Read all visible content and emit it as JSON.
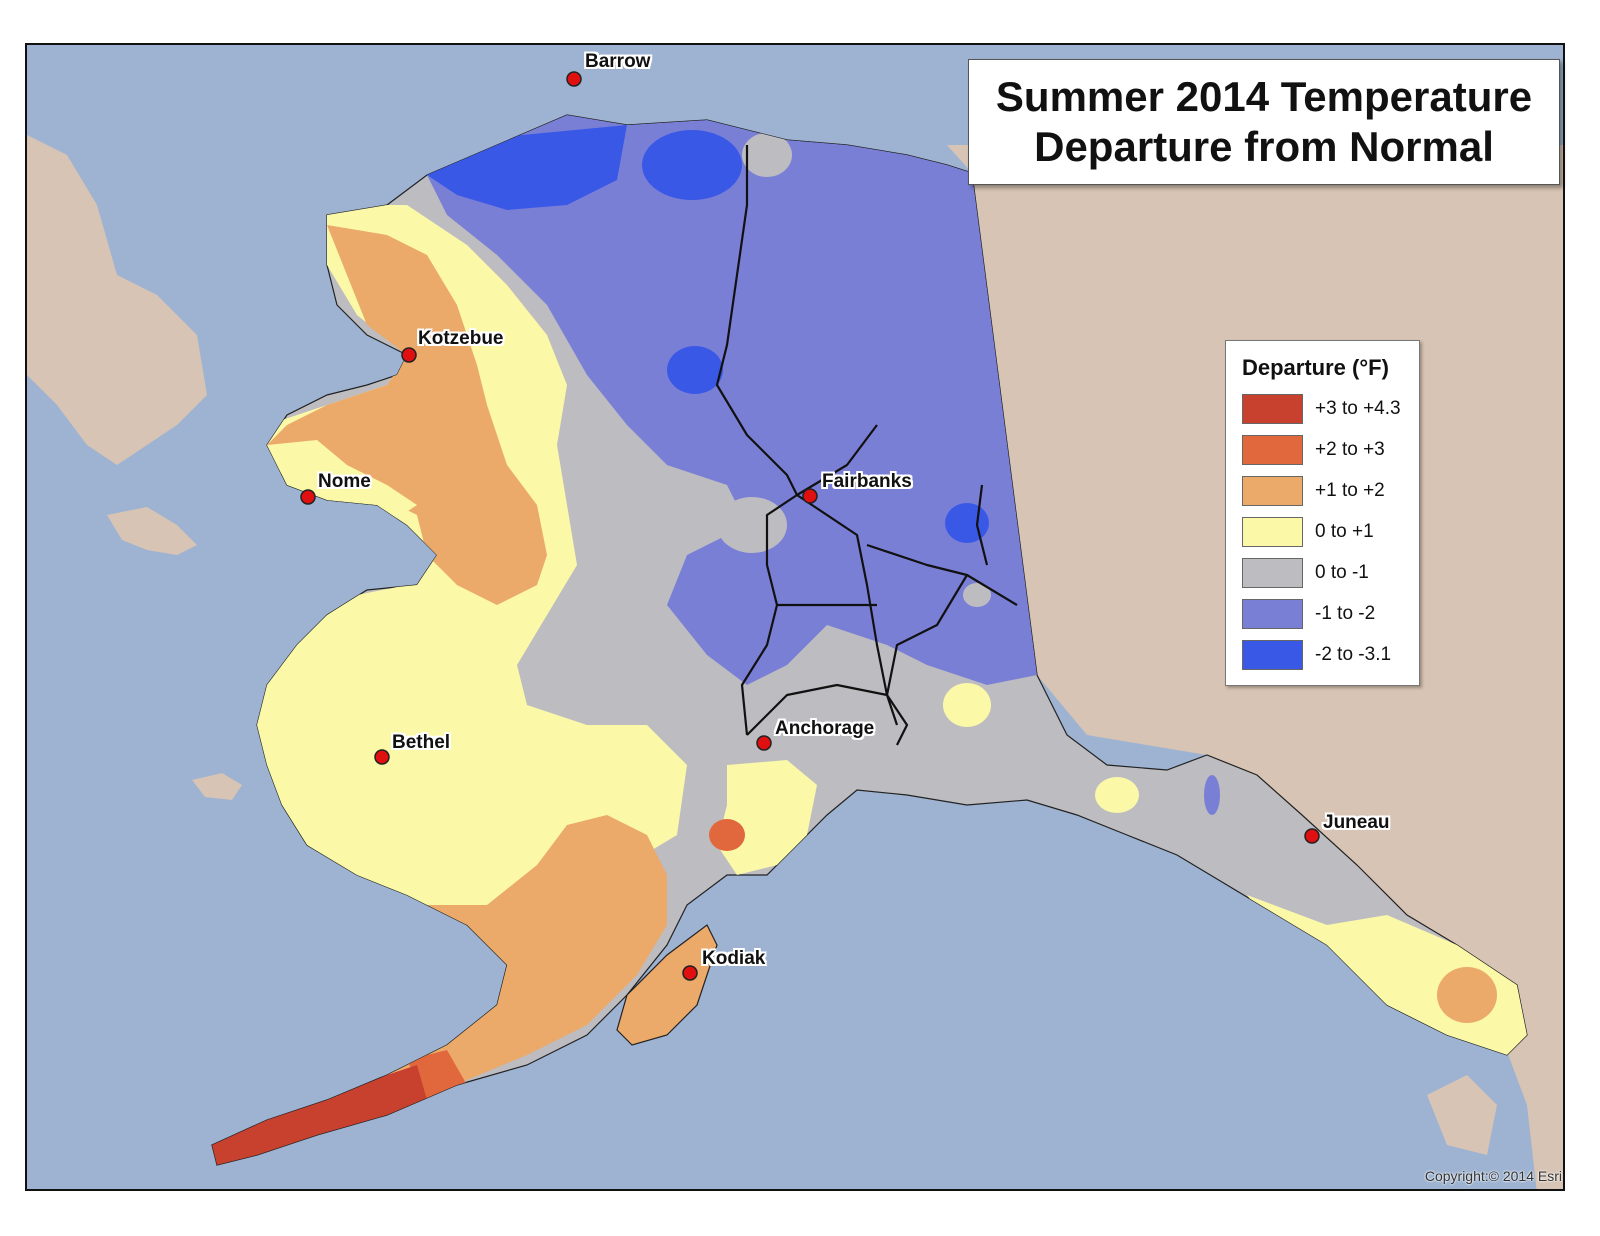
{
  "title": {
    "line1": "Summer 2014 Temperature",
    "line2": "Departure from Normal"
  },
  "legend": {
    "title": "Departure (°F)",
    "items": [
      {
        "label": "+3 to +4.3",
        "color": "#c8402e"
      },
      {
        "label": "+2 to +3",
        "color": "#e0683c"
      },
      {
        "label": "+1 to +2",
        "color": "#eba96a"
      },
      {
        "label": "0 to +1",
        "color": "#fbf8a8"
      },
      {
        "label": "0 to -1",
        "color": "#bdbdc1"
      },
      {
        "label": "-1 to -2",
        "color": "#7a7fd6"
      },
      {
        "label": "-2 to -3.1",
        "color": "#3a58e6"
      }
    ]
  },
  "cities": [
    {
      "name": "Barrow"
    },
    {
      "name": "Kotzebue"
    },
    {
      "name": "Nome"
    },
    {
      "name": "Fairbanks"
    },
    {
      "name": "Anchorage"
    },
    {
      "name": "Bethel"
    },
    {
      "name": "Juneau"
    },
    {
      "name": "Kodiak"
    }
  ],
  "colors": {
    "water": "#9db3d1",
    "canada_land": "#d8c4b4",
    "city_marker": "#e01010",
    "roads": "#111111"
  },
  "copyright": "Copyright:© 2014 Esri"
}
